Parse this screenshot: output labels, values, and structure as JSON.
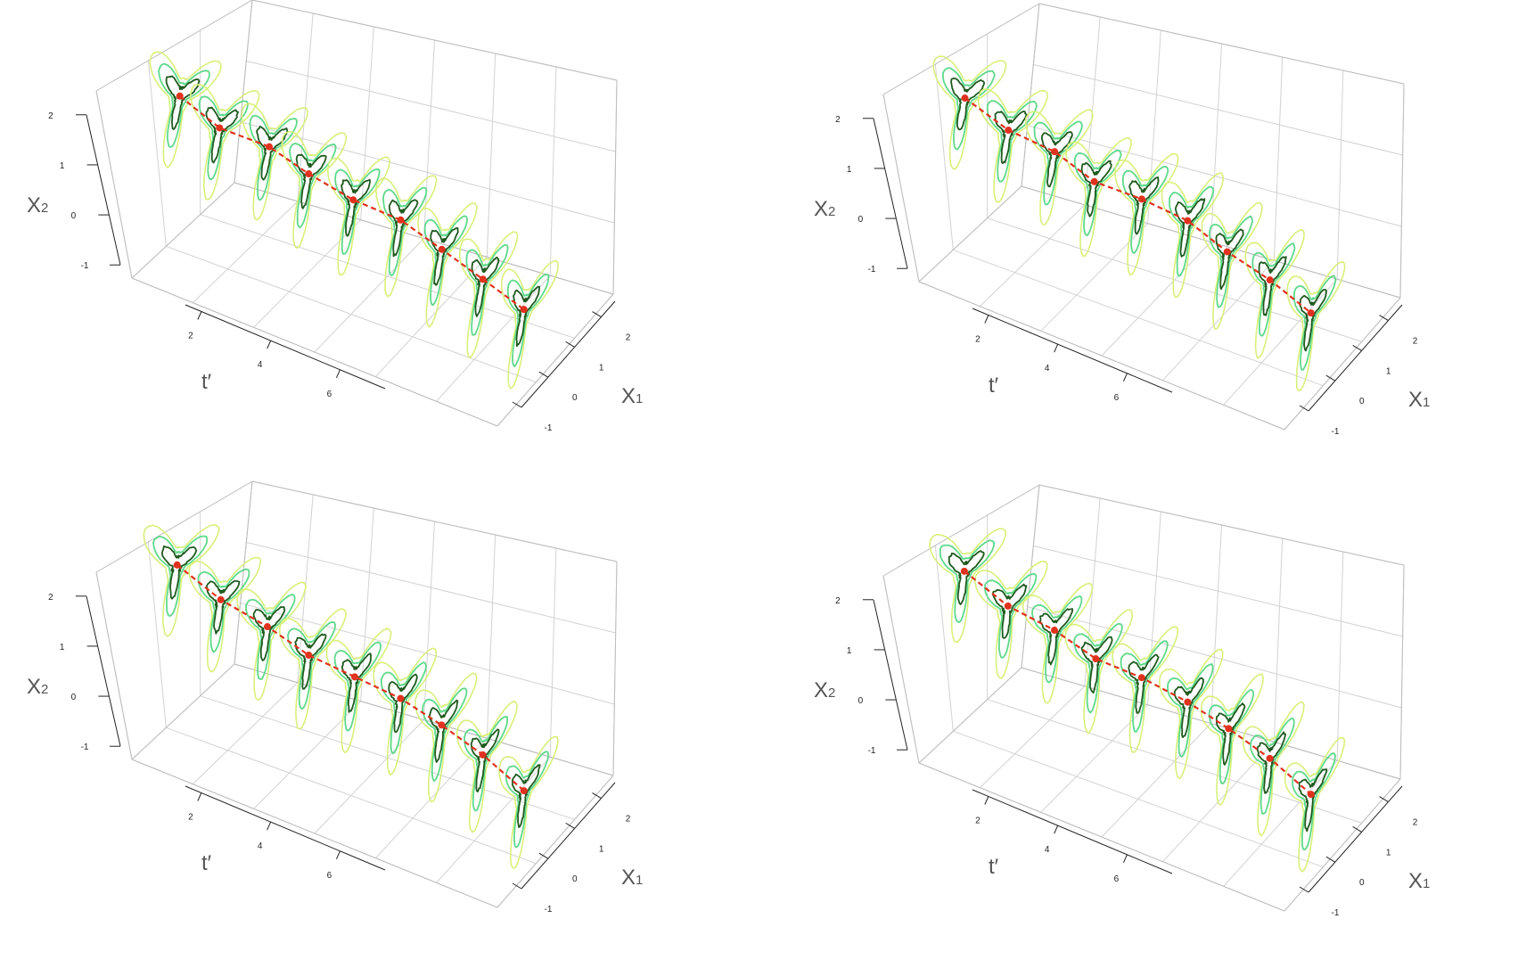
{
  "chart_data": [
    {
      "panel": "top-left",
      "type": "3d-contour-surface",
      "axes": {
        "t": {
          "label": "t",
          "prime": "′",
          "range": [
            1.3,
            7.3
          ],
          "ticks": [
            "2",
            "4",
            "6"
          ]
        },
        "x1": {
          "label": "X",
          "sub": "1",
          "range": [
            -1.4,
            2.6
          ],
          "ticks": [
            "-1",
            "0",
            "1",
            "2"
          ]
        },
        "x2": {
          "label": "X",
          "sub": "2",
          "range": [
            -1.2,
            2.2
          ],
          "ticks": [
            "-1",
            "0",
            "1",
            "2"
          ]
        }
      },
      "grid": true,
      "contour_levels": [
        {
          "level": "outer",
          "color": "#d8f07a"
        },
        {
          "level": "middle",
          "color": "#5fd98a"
        },
        {
          "level": "inner",
          "color": "#1f5a1f"
        }
      ],
      "mean_path_color": "#e0321e",
      "mean_path": [
        {
          "t": 1.5,
          "x1": 0.35,
          "x2": 1.45
        },
        {
          "t": 2.2,
          "x1": 0.2,
          "x2": 1.2
        },
        {
          "t": 2.9,
          "x1": 0.35,
          "x2": 1.05
        },
        {
          "t": 3.6,
          "x1": 0.2,
          "x2": 0.9
        },
        {
          "t": 4.3,
          "x1": 0.2,
          "x2": 0.7
        },
        {
          "t": 5.0,
          "x1": 0.3,
          "x2": 0.55
        },
        {
          "t": 5.7,
          "x1": 0.2,
          "x2": 0.35
        },
        {
          "t": 6.4,
          "x1": 0.1,
          "x2": 0.15
        },
        {
          "t": 7.1,
          "x1": 0.0,
          "x2": -0.05
        }
      ]
    },
    {
      "panel": "top-right",
      "type": "3d-contour-surface",
      "axes": {
        "t": {
          "label": "t",
          "prime": "′",
          "range": [
            1.3,
            7.3
          ],
          "ticks": [
            "2",
            "4",
            "6"
          ]
        },
        "x1": {
          "label": "X",
          "sub": "1",
          "range": [
            -1.4,
            2.6
          ],
          "ticks": [
            "-1",
            "0",
            "1",
            "2"
          ]
        },
        "x2": {
          "label": "X",
          "sub": "2",
          "range": [
            -1.2,
            2.2
          ],
          "ticks": [
            "-1",
            "0",
            "1",
            "2"
          ]
        }
      },
      "grid": true,
      "contour_levels": [
        {
          "level": "outer",
          "color": "#d8f07a"
        },
        {
          "level": "middle",
          "color": "#5fd98a"
        },
        {
          "level": "inner",
          "color": "#1f5a1f"
        }
      ],
      "mean_path_color": "#e0321e",
      "mean_path": [
        {
          "t": 1.5,
          "x1": 0.3,
          "x2": 1.5
        },
        {
          "t": 2.2,
          "x1": 0.25,
          "x2": 1.2
        },
        {
          "t": 2.9,
          "x1": 0.3,
          "x2": 1.05
        },
        {
          "t": 3.6,
          "x1": 0.15,
          "x2": 0.85
        },
        {
          "t": 4.3,
          "x1": 0.25,
          "x2": 0.75
        },
        {
          "t": 5.0,
          "x1": 0.3,
          "x2": 0.6
        },
        {
          "t": 5.7,
          "x1": 0.15,
          "x2": 0.4
        },
        {
          "t": 6.4,
          "x1": 0.1,
          "x2": 0.2
        },
        {
          "t": 7.1,
          "x1": 0.0,
          "x2": -0.05
        }
      ]
    },
    {
      "panel": "bottom-left",
      "type": "3d-contour-surface",
      "axes": {
        "t": {
          "label": "t",
          "prime": "′",
          "range": [
            1.3,
            7.3
          ],
          "ticks": [
            "2",
            "4",
            "6"
          ]
        },
        "x1": {
          "label": "X",
          "sub": "1",
          "range": [
            -1.4,
            2.6
          ],
          "ticks": [
            "-1",
            "0",
            "1",
            "2"
          ]
        },
        "x2": {
          "label": "X",
          "sub": "2",
          "range": [
            -1.2,
            2.2
          ],
          "ticks": [
            "-1",
            "0",
            "1",
            "2"
          ]
        }
      },
      "grid": true,
      "contour_levels": [
        {
          "level": "outer",
          "color": "#d8f07a"
        },
        {
          "level": "middle",
          "color": "#5fd98a"
        },
        {
          "level": "inner",
          "color": "#1f5a1f"
        }
      ],
      "mean_path_color": "#e0321e",
      "mean_path": [
        {
          "t": 1.5,
          "x1": 0.3,
          "x2": 1.7
        },
        {
          "t": 2.2,
          "x1": 0.25,
          "x2": 1.35
        },
        {
          "t": 2.9,
          "x1": 0.3,
          "x2": 1.1
        },
        {
          "t": 3.6,
          "x1": 0.2,
          "x2": 0.9
        },
        {
          "t": 4.3,
          "x1": 0.25,
          "x2": 0.75
        },
        {
          "t": 5.0,
          "x1": 0.3,
          "x2": 0.6
        },
        {
          "t": 5.7,
          "x1": 0.2,
          "x2": 0.45
        },
        {
          "t": 6.4,
          "x1": 0.1,
          "x2": 0.25
        },
        {
          "t": 7.1,
          "x1": 0.0,
          "x2": -0.05
        }
      ]
    },
    {
      "panel": "bottom-right",
      "type": "3d-contour-surface",
      "axes": {
        "t": {
          "label": "t",
          "prime": "′",
          "range": [
            1.3,
            7.3
          ],
          "ticks": [
            "2",
            "4",
            "6"
          ]
        },
        "x1": {
          "label": "X",
          "sub": "1",
          "range": [
            -1.4,
            2.6
          ],
          "ticks": [
            "-1",
            "0",
            "1",
            "2"
          ]
        },
        "x2": {
          "label": "X",
          "sub": "2",
          "range": [
            -1.2,
            2.2
          ],
          "ticks": [
            "-1",
            "0",
            "1",
            "2"
          ]
        }
      },
      "grid": true,
      "contour_levels": [
        {
          "level": "outer",
          "color": "#d8f07a"
        },
        {
          "level": "middle",
          "color": "#5fd98a"
        },
        {
          "level": "inner",
          "color": "#1f5a1f"
        }
      ],
      "mean_path_color": "#e0321e",
      "mean_path": [
        {
          "t": 1.5,
          "x1": 0.3,
          "x2": 1.65
        },
        {
          "t": 2.2,
          "x1": 0.25,
          "x2": 1.3
        },
        {
          "t": 2.9,
          "x1": 0.3,
          "x2": 1.1
        },
        {
          "t": 3.6,
          "x1": 0.2,
          "x2": 0.9
        },
        {
          "t": 4.3,
          "x1": 0.25,
          "x2": 0.8
        },
        {
          "t": 5.0,
          "x1": 0.3,
          "x2": 0.6
        },
        {
          "t": 5.7,
          "x1": 0.2,
          "x2": 0.45
        },
        {
          "t": 6.4,
          "x1": 0.1,
          "x2": 0.25
        },
        {
          "t": 7.1,
          "x1": 0.0,
          "x2": -0.05
        }
      ]
    }
  ]
}
